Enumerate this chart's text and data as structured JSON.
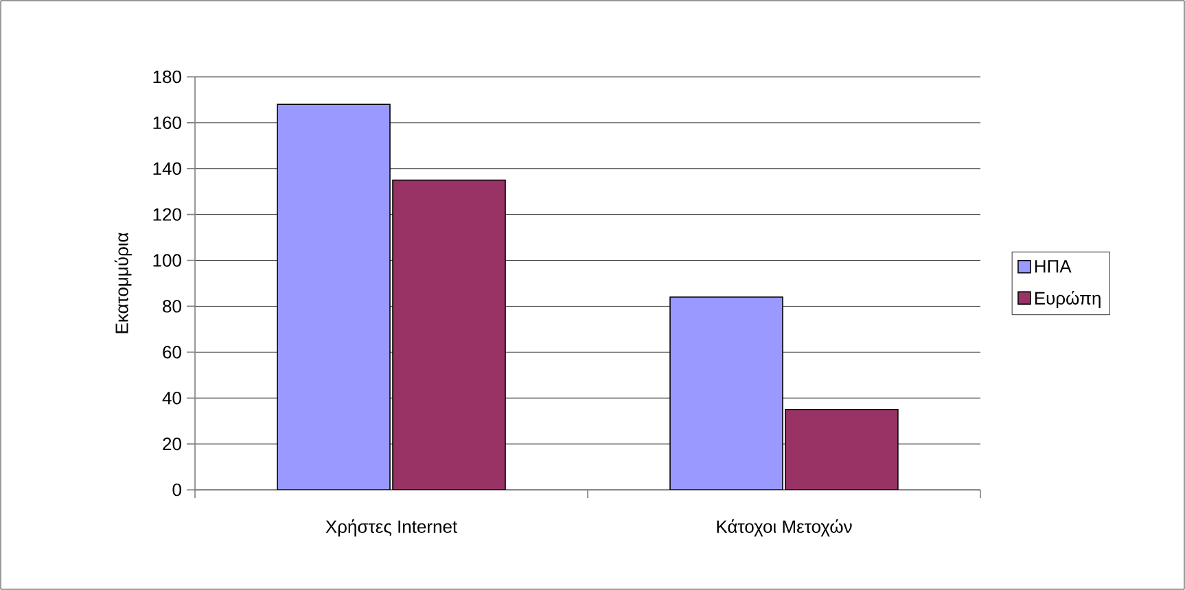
{
  "chart_data": {
    "type": "bar",
    "ylabel": "Εκατομμύρια",
    "categories": [
      "Χρήστες Internet",
      "Κάτοχοι Μετοχών"
    ],
    "series": [
      {
        "name": "ΗΠΑ",
        "color": "#9999ff",
        "values": [
          168,
          84
        ]
      },
      {
        "name": "Ευρώπη",
        "color": "#993366",
        "values": [
          135,
          35
        ]
      }
    ],
    "ylim": [
      0,
      180
    ],
    "yticks": [
      0,
      20,
      40,
      60,
      80,
      100,
      120,
      140,
      160,
      180
    ],
    "grid": "y",
    "legend": "right"
  }
}
